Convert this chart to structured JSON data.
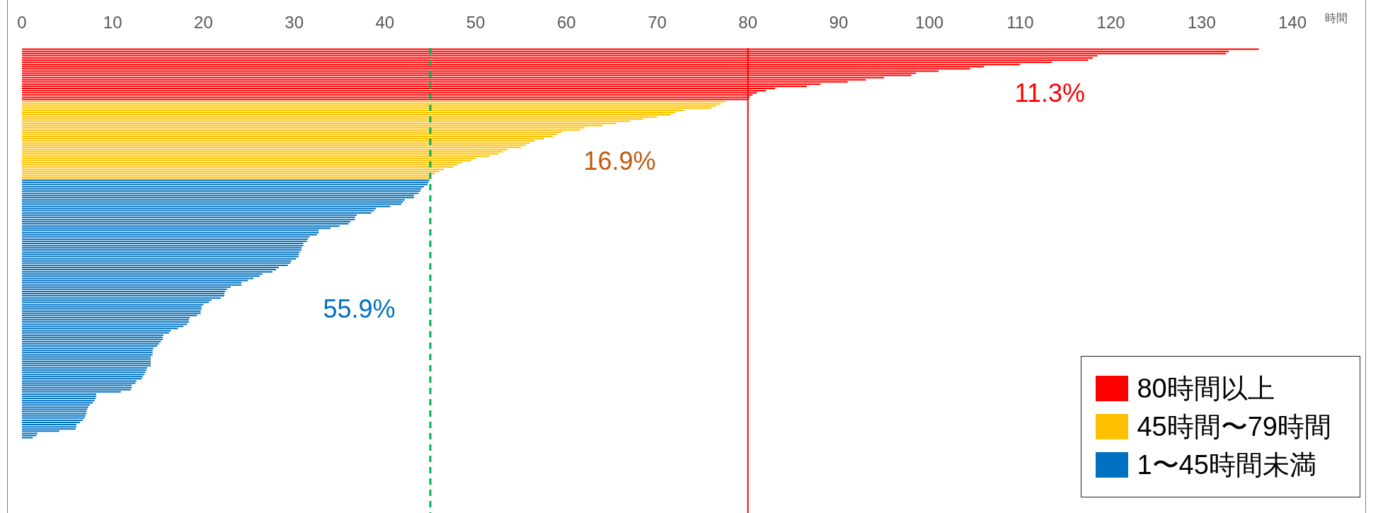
{
  "chart_data": {
    "type": "bar",
    "orientation": "horizontal",
    "xlabel": "時間",
    "xlim": [
      0,
      140
    ],
    "xticks": [
      0,
      10,
      20,
      30,
      40,
      50,
      60,
      70,
      80,
      90,
      100,
      110,
      120,
      130,
      140
    ],
    "tick_labels": "x",
    "grid": false,
    "legend": "bottom right",
    "categories": [
      null,
      null,
      null,
      null,
      null,
      null,
      null,
      null,
      null,
      null,
      null,
      null,
      null,
      null,
      null,
      null,
      null,
      null,
      null,
      null,
      null,
      null,
      null,
      null,
      null,
      null,
      null,
      null,
      null,
      null,
      null,
      null,
      null,
      null,
      null,
      null,
      null,
      null,
      null,
      null,
      null,
      null,
      null,
      null,
      null,
      null,
      null,
      null,
      null,
      null,
      null,
      null,
      null,
      null,
      null,
      null,
      null,
      null,
      null,
      null,
      null,
      null,
      null,
      null,
      null,
      null,
      null,
      null,
      null,
      null,
      null,
      null,
      null,
      null,
      null,
      null,
      null,
      null,
      null,
      null,
      null,
      null,
      null,
      null,
      null,
      null,
      null,
      null,
      null,
      null,
      null,
      null,
      null,
      null,
      null,
      null,
      null,
      null,
      null,
      null,
      null,
      null,
      null,
      null,
      null,
      null,
      null,
      null,
      null,
      null,
      null,
      null,
      null,
      null,
      null,
      null,
      null,
      null,
      null,
      null,
      null,
      null,
      null,
      null,
      null,
      null,
      null,
      null,
      null,
      null,
      null,
      null,
      null,
      null,
      null,
      null,
      null,
      null,
      null,
      null,
      null,
      null,
      null,
      null,
      null,
      null,
      null,
      null,
      null,
      null,
      null,
      null,
      null,
      null,
      null,
      null,
      null,
      null,
      null,
      null,
      null,
      null,
      null,
      null,
      null,
      null,
      null,
      null,
      null,
      null,
      null,
      null,
      null,
      null,
      null,
      null,
      null,
      null,
      null,
      null,
      null,
      null,
      null,
      null,
      null,
      null,
      null,
      null,
      null,
      null,
      null,
      null,
      null,
      null,
      null,
      null,
      null,
      null,
      null,
      null,
      null,
      null,
      null,
      null,
      null,
      null,
      null,
      null,
      null,
      null,
      null,
      null,
      null
    ],
    "series": [
      {
        "name": "80時間以上",
        "color": "#ff0000",
        "values": [
          136.3,
          133,
          132.7,
          118.5,
          118,
          117.5,
          113.5,
          110,
          106,
          104.5,
          101,
          98.5,
          98,
          95,
          93,
          91,
          88,
          86.5,
          83,
          82,
          81,
          80.5,
          80.2,
          80,
          null,
          null,
          null,
          null,
          null,
          null,
          null,
          null,
          null,
          null,
          null,
          null,
          null,
          null,
          null,
          null,
          null,
          null,
          null,
          null,
          null,
          null,
          null,
          null,
          null,
          null,
          null,
          null,
          null,
          null,
          null,
          null,
          null,
          null,
          null,
          null,
          null,
          null,
          null,
          null,
          null,
          null,
          null,
          null,
          null,
          null,
          null,
          null,
          null,
          null,
          null,
          null,
          null,
          null,
          null,
          null,
          null,
          null,
          null,
          null,
          null,
          null,
          null,
          null,
          null,
          null,
          null,
          null,
          null,
          null,
          null,
          null,
          null,
          null,
          null,
          null,
          null,
          null,
          null,
          null,
          null,
          null,
          null,
          null,
          null,
          null,
          null,
          null,
          null,
          null,
          null,
          null,
          null,
          null,
          null,
          null,
          null,
          null,
          null,
          null,
          null,
          null,
          null,
          null,
          null,
          null,
          null,
          null,
          null,
          null,
          null,
          null,
          null,
          null,
          null,
          null,
          null,
          null,
          null,
          null,
          null,
          null,
          null,
          null,
          null,
          null,
          null,
          null,
          null,
          null,
          null,
          null,
          null,
          null,
          null,
          null,
          null,
          null,
          null,
          null,
          null,
          null,
          null,
          null,
          null,
          null,
          null,
          null,
          null,
          null,
          null,
          null,
          null,
          null,
          null,
          null,
          null,
          null,
          null,
          null,
          null,
          null,
          null,
          null,
          null,
          null,
          null,
          null,
          null,
          null,
          null,
          null,
          null,
          null,
          null,
          null,
          null,
          null,
          null,
          null,
          null,
          null,
          null,
          null,
          null,
          null,
          null,
          null,
          null
        ]
      },
      {
        "name": "45時間〜79時間",
        "color": "#ffc000",
        "values": [
          null,
          null,
          null,
          null,
          null,
          null,
          null,
          null,
          null,
          null,
          null,
          null,
          null,
          null,
          null,
          null,
          null,
          null,
          null,
          null,
          null,
          null,
          null,
          null,
          77.5,
          77,
          76.5,
          76,
          73,
          72,
          71.5,
          70,
          68.5,
          67,
          65.5,
          64,
          62,
          61.5,
          59.5,
          59,
          58.5,
          57.5,
          56.5,
          56,
          55.5,
          55,
          53.5,
          53,
          52.5,
          51.5,
          50,
          49.5,
          48.5,
          48,
          47.5,
          46.5,
          46,
          45.5,
          45,
          45,
          null,
          null,
          null,
          null,
          null,
          null,
          null,
          null,
          null,
          null,
          null,
          null,
          null,
          null,
          null,
          null,
          null,
          null,
          null,
          null,
          null,
          null,
          null,
          null,
          null,
          null,
          null,
          null,
          null,
          null,
          null,
          null,
          null,
          null,
          null,
          null,
          null,
          null,
          null,
          null,
          null,
          null,
          null,
          null,
          null,
          null,
          null,
          null,
          null,
          null,
          null,
          null,
          null,
          null,
          null,
          null,
          null,
          null,
          null,
          null,
          null,
          null,
          null,
          null,
          null,
          null,
          null,
          null,
          null,
          null,
          null,
          null,
          null,
          null,
          null,
          null,
          null,
          null,
          null,
          null,
          null,
          null,
          null,
          null,
          null,
          null,
          null,
          null,
          null,
          null,
          null,
          null,
          null,
          null,
          null,
          null,
          null,
          null,
          null,
          null,
          null,
          null,
          null,
          null,
          null,
          null,
          null,
          null,
          null,
          null,
          null,
          null,
          null,
          null,
          null,
          null,
          null,
          null,
          null,
          null,
          null,
          null,
          null,
          null,
          null,
          null,
          null,
          null,
          null,
          null,
          null,
          null,
          null,
          null,
          null,
          null,
          null,
          null,
          null,
          null,
          null,
          null,
          null,
          null,
          null,
          null,
          null,
          null,
          null,
          null,
          null,
          null,
          null
        ]
      },
      {
        "name": "1〜45時間未満",
        "color": "#0070c0",
        "values": [
          null,
          null,
          null,
          null,
          null,
          null,
          null,
          null,
          null,
          null,
          null,
          null,
          null,
          null,
          null,
          null,
          null,
          null,
          null,
          null,
          null,
          null,
          null,
          null,
          null,
          null,
          null,
          null,
          null,
          null,
          null,
          null,
          null,
          null,
          null,
          null,
          null,
          null,
          null,
          null,
          null,
          null,
          null,
          null,
          null,
          null,
          null,
          null,
          null,
          null,
          null,
          null,
          null,
          null,
          null,
          null,
          null,
          null,
          null,
          null,
          44.9,
          44.8,
          44.7,
          44.3,
          44.0,
          43.9,
          43.7,
          43.2,
          43.2,
          42.2,
          42.0,
          41.8,
          40.6,
          39.0,
          38.8,
          38.5,
          36.9,
          36.7,
          36.7,
          36.2,
          36.0,
          35.0,
          34.0,
          32.7,
          32.7,
          32.5,
          31.7,
          31.5,
          31.4,
          31.0,
          31.0,
          30.8,
          30.8,
          30.6,
          30.5,
          30.5,
          30.2,
          29.7,
          29.6,
          29.3,
          28.3,
          28.0,
          27.6,
          26.5,
          26.2,
          25.5,
          24.9,
          24.2,
          24.2,
          23.0,
          22.6,
          22.4,
          22.3,
          22.3,
          21.9,
          20.9,
          20.6,
          20.0,
          19.8,
          19.8,
          19.7,
          19.7,
          19.3,
          18.5,
          18.4,
          18.4,
          18.2,
          17.8,
          17.2,
          16.4,
          16.2,
          15.6,
          15.5,
          15.5,
          15.3,
          15.1,
          14.9,
          14.5,
          14.4,
          14.4,
          14.4,
          14.2,
          14.2,
          14.2,
          14.2,
          14.2,
          13.8,
          13.7,
          13.6,
          13.5,
          13.3,
          13.2,
          12.6,
          12.5,
          12.1,
          12.1,
          12.0,
          10.9,
          8.2,
          8.2,
          8.1,
          8.0,
          7.8,
          7.5,
          7.3,
          7.2,
          7.1,
          7.1,
          7.0,
          6.9,
          6.7,
          6.4,
          6.0,
          6.0,
          5.9,
          4.1,
          1.7,
          1.6,
          1.2,
          null,
          null,
          null,
          null,
          null,
          null,
          null,
          null,
          null,
          null,
          null,
          null,
          null,
          null,
          null,
          null,
          null,
          null,
          null,
          null,
          null,
          null,
          null,
          null,
          null,
          null,
          null,
          null,
          null,
          null,
          null,
          null,
          null,
          null
        ]
      }
    ],
    "ref_lines": [
      {
        "axis": "x",
        "value": 45,
        "color": "#00b050",
        "line_style": "dashed"
      },
      {
        "axis": "x",
        "value": 80,
        "color": "#ff0000",
        "line_style": "solid"
      }
    ],
    "annotations": [
      "11.3%",
      "16.9%",
      "55.9%"
    ]
  }
}
